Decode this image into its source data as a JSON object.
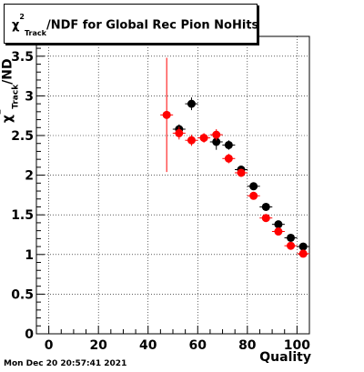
{
  "title": {
    "prefix": "χ",
    "sup": "2",
    "sub": "Track",
    "suffix": "/NDF for Global Rec Pion NoHits"
  },
  "timestamp": "Mon Dec 20 20:57:41 2021",
  "chart_data": {
    "type": "scatter",
    "xlabel": "Quality",
    "ylabel": {
      "prefix": "χ",
      "sup": "2",
      "sub": "Track",
      "suffix": "/ND"
    },
    "xlim": [
      -5,
      105
    ],
    "ylim": [
      0,
      3.75
    ],
    "grid": true,
    "xticks": [
      0,
      20,
      40,
      60,
      80,
      100
    ],
    "yticks": [
      0,
      0.5,
      1,
      1.5,
      2,
      2.5,
      3,
      3.5
    ],
    "series": [
      {
        "color": "#000000",
        "x": [
          52.5,
          57.5,
          67.5,
          72.5,
          77.5,
          82.5,
          87.5,
          92.5,
          97.5,
          102.5
        ],
        "y": [
          2.58,
          2.9,
          2.42,
          2.38,
          2.07,
          1.86,
          1.6,
          1.38,
          1.21,
          1.1
        ],
        "yerr": [
          0.06,
          0.08,
          0.1,
          0.06,
          0.05,
          0.04,
          0.03,
          0.03,
          0.03,
          0.03
        ]
      },
      {
        "color": "#ff0000",
        "x": [
          47.5,
          52.5,
          57.5,
          62.5,
          67.5,
          72.5,
          77.5,
          82.5,
          87.5,
          92.5,
          97.5,
          102.5
        ],
        "y": [
          2.76,
          2.53,
          2.44,
          2.47,
          2.51,
          2.21,
          2.03,
          1.74,
          1.46,
          1.29,
          1.11,
          1.01
        ],
        "yerr": [
          0.72,
          0.08,
          0.07,
          0.06,
          0.07,
          0.06,
          0.05,
          0.04,
          0.03,
          0.03,
          0.03,
          0.03
        ]
      }
    ]
  }
}
